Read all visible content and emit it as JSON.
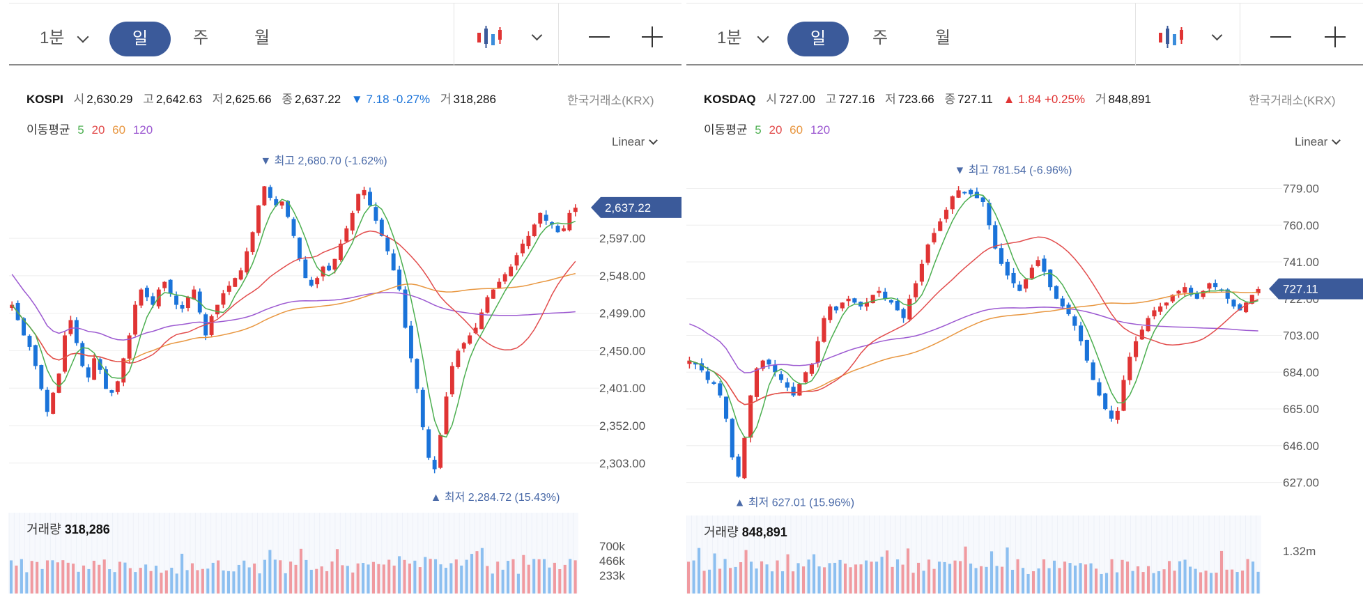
{
  "toolbar": {
    "minute_label": "1분",
    "day_label": "일",
    "week_label": "주",
    "month_label": "월"
  },
  "colors": {
    "pill": "#3b5a9a",
    "up": "#e03434",
    "down": "#1a73d9",
    "ma5": "#4caf50",
    "ma20": "#e24c4c",
    "ma60": "#e8963f",
    "ma120": "#9c59d1",
    "price_tag": "#3b5a9a"
  },
  "icons": {
    "candle": "candlestick-chart-icon",
    "chevron": "chevron-down-icon",
    "minus": "zoom-out-icon",
    "plus": "zoom-in-icon"
  },
  "panels": [
    {
      "name": "KOSPI",
      "open_label": "시",
      "open": "2,630.29",
      "high_label": "고",
      "high": "2,642.63",
      "low_label": "저",
      "low": "2,625.66",
      "close_label": "종",
      "close": "2,637.22",
      "change": "▼ 7.18 -0.27%",
      "direction": "down",
      "volume_label": "거",
      "volume": "318,286",
      "exchange": "한국거래소(KRX)",
      "ma_title": "이동평균",
      "ma_periods": [
        "5",
        "20",
        "60",
        "120"
      ],
      "scale": "Linear",
      "max_note": "▼ 최고 2,680.70 (-1.62%)",
      "min_note": "▲ 최저 2,284.72 (15.43%)",
      "current_tag": "2,637.22",
      "vol_title": "거래량",
      "vol_value": "318,286",
      "vol_ticks": [
        "700k",
        "466k",
        "233k"
      ]
    },
    {
      "name": "KOSDAQ",
      "open_label": "시",
      "open": "727.00",
      "high_label": "고",
      "high": "727.16",
      "low_label": "저",
      "low": "723.66",
      "close_label": "종",
      "close": "727.11",
      "change": "▲ 1.84 +0.25%",
      "direction": "up",
      "volume_label": "거",
      "volume": "848,891",
      "exchange": "한국거래소(KRX)",
      "ma_title": "이동평균",
      "ma_periods": [
        "5",
        "20",
        "60",
        "120"
      ],
      "scale": "Linear",
      "max_note": "▼ 최고 781.54 (-6.96%)",
      "min_note": "▲ 최저 627.01 (15.96%)",
      "current_tag": "727.11",
      "vol_title": "거래량",
      "vol_value": "848,891",
      "vol_ticks": [
        "1.32m"
      ]
    }
  ],
  "chart_data": [
    {
      "type": "candlestick",
      "title": "KOSPI",
      "y_ticks": [
        2303,
        2352,
        2401,
        2450,
        2499,
        2548,
        2597
      ],
      "y_tick_labels": [
        "2,303.00",
        "2,352.00",
        "2,401.00",
        "2,450.00",
        "2,499.00",
        "2,548.00",
        "2,597.00"
      ],
      "ylim": [
        2280,
        2690
      ],
      "high": 2680.7,
      "low": 2284.72,
      "last": 2637.22,
      "close_path": [
        2510,
        2490,
        2470,
        2455,
        2430,
        2400,
        2370,
        2395,
        2420,
        2470,
        2490,
        2460,
        2430,
        2415,
        2440,
        2425,
        2400,
        2395,
        2410,
        2440,
        2470,
        2510,
        2530,
        2520,
        2510,
        2530,
        2540,
        2525,
        2510,
        2505,
        2520,
        2530,
        2500,
        2470,
        2495,
        2510,
        2525,
        2535,
        2545,
        2555,
        2580,
        2605,
        2640,
        2665,
        2650,
        2640,
        2645,
        2625,
        2600,
        2570,
        2545,
        2535,
        2545,
        2560,
        2555,
        2570,
        2590,
        2610,
        2630,
        2655,
        2660,
        2640,
        2620,
        2600,
        2580,
        2555,
        2530,
        2480,
        2440,
        2400,
        2350,
        2310,
        2295,
        2340,
        2390,
        2430,
        2450,
        2460,
        2470,
        2480,
        2500,
        2520,
        2530,
        2540,
        2550,
        2560,
        2575,
        2590,
        2600,
        2615,
        2630,
        2620,
        2615,
        2605,
        2610,
        2630,
        2637
      ],
      "ma": {
        "5": "smoothed 5-day average of close_path",
        "20": "smoothed 20-day average of close_path",
        "60": "smoothed 60-day average of close_path",
        "120": "smoothed 120-day average of close_path"
      },
      "volume_ticks": [
        233000,
        466000,
        700000
      ],
      "volume_last": 318286
    },
    {
      "type": "candlestick",
      "title": "KOSDAQ",
      "y_ticks": [
        627,
        646,
        665,
        684,
        703,
        722,
        741,
        760,
        779
      ],
      "y_tick_labels": [
        "627.00",
        "646.00",
        "665.00",
        "684.00",
        "703.00",
        "722.00",
        "741.00",
        "760.00",
        "779.00"
      ],
      "ylim": [
        620,
        790
      ],
      "high": 781.54,
      "low": 627.01,
      "last": 727.11,
      "close_path": [
        690,
        688,
        685,
        680,
        678,
        672,
        660,
        640,
        630,
        650,
        672,
        686,
        690,
        688,
        684,
        680,
        676,
        672,
        678,
        684,
        688,
        700,
        712,
        718,
        716,
        720,
        722,
        720,
        718,
        720,
        724,
        726,
        722,
        720,
        716,
        712,
        722,
        730,
        740,
        750,
        756,
        762,
        768,
        775,
        778,
        777,
        776,
        774,
        772,
        760,
        748,
        740,
        734,
        730,
        726,
        732,
        738,
        742,
        736,
        728,
        722,
        718,
        714,
        708,
        700,
        690,
        680,
        672,
        665,
        660,
        664,
        680,
        692,
        700,
        706,
        712,
        716,
        718,
        720,
        724,
        726,
        728,
        724,
        722,
        726,
        730,
        728,
        726,
        722,
        718,
        716,
        720,
        724,
        727
      ],
      "ma": {
        "5": "smoothed 5-day average of close_path",
        "20": "smoothed 20-day average of close_path",
        "60": "smoothed 60-day average of close_path",
        "120": "smoothed 120-day average of close_path"
      },
      "volume_ticks": [
        1320000
      ],
      "volume_last": 848891
    }
  ]
}
